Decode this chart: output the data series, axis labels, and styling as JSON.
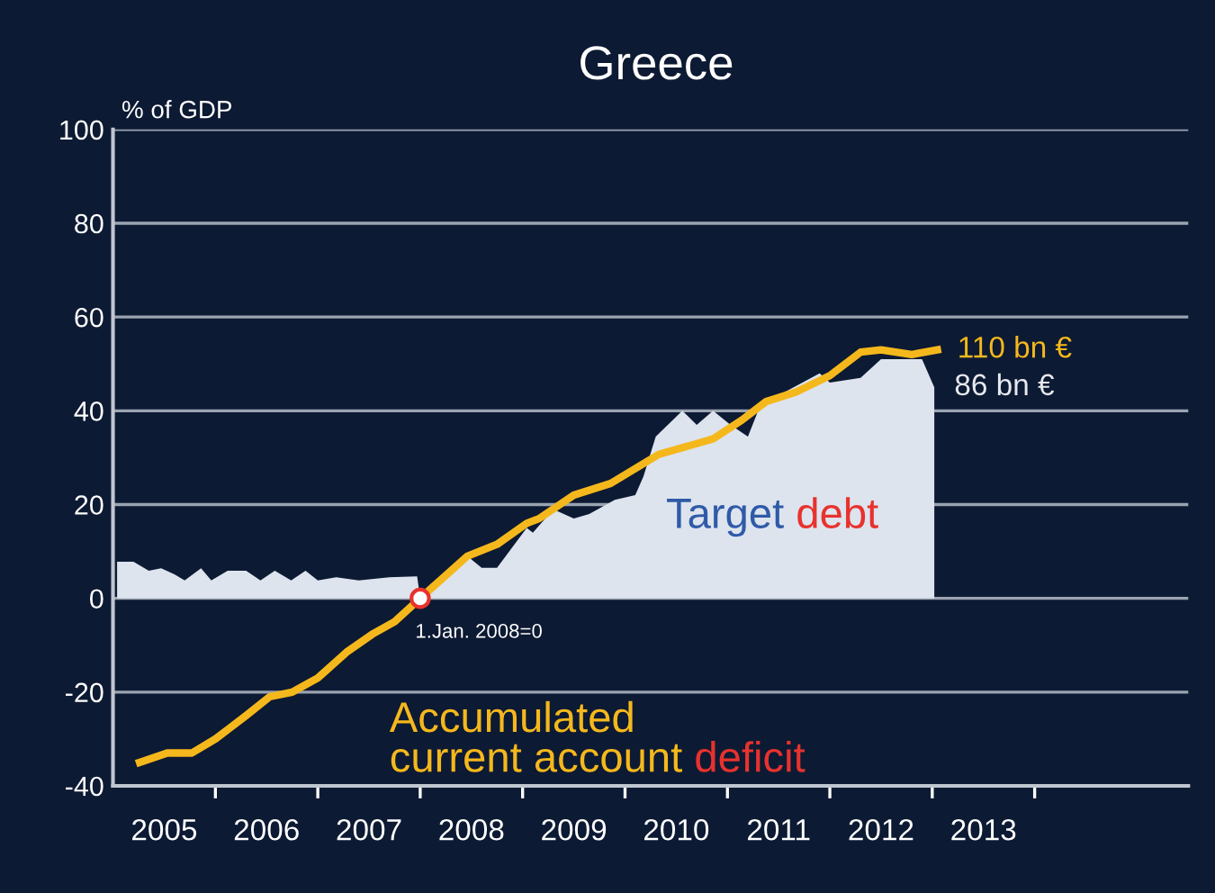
{
  "chart_data": {
    "type": "area",
    "title": "Greece",
    "ylabel": "% of GDP",
    "xlim": [
      2005,
      2015.5
    ],
    "ylim": [
      -40,
      100
    ],
    "xticks": [
      {
        "value": 2005.5,
        "label": "2005"
      },
      {
        "value": 2006.5,
        "label": "2006"
      },
      {
        "value": 2007.5,
        "label": "2007"
      },
      {
        "value": 2008.5,
        "label": "2008"
      },
      {
        "value": 2009.5,
        "label": "2009"
      },
      {
        "value": 2010.5,
        "label": "2010"
      },
      {
        "value": 2011.5,
        "label": "2011"
      },
      {
        "value": 2012.5,
        "label": "2012"
      },
      {
        "value": 2013.5,
        "label": "2013"
      },
      {
        "value": 2006,
        "label": null
      },
      {
        "value": 2007,
        "label": null
      },
      {
        "value": 2008,
        "label": null
      },
      {
        "value": 2009,
        "label": null
      },
      {
        "value": 2010,
        "label": null
      },
      {
        "value": 2011,
        "label": null
      },
      {
        "value": 2012,
        "label": null
      },
      {
        "value": 2013,
        "label": null
      },
      {
        "value": 2014,
        "label": null
      }
    ],
    "yticks": [
      -40,
      -20,
      0,
      20,
      40,
      60,
      80,
      100
    ],
    "grid": "y",
    "series": [
      {
        "name": "Target debt",
        "color": "#dde4ee",
        "x": [
          2005.04,
          2005.2,
          2005.35,
          2005.47,
          2005.6,
          2005.7,
          2005.86,
          2005.96,
          2006.12,
          2006.3,
          2006.44,
          2006.58,
          2006.74,
          2006.88,
          2007.0,
          2007.18,
          2007.4,
          2007.7,
          2007.97,
          2008.0,
          2008.1,
          2008.46,
          2008.6,
          2008.75,
          2009.04,
          2009.1,
          2009.3,
          2009.5,
          2009.65,
          2009.9,
          2010.1,
          2010.18,
          2010.3,
          2010.56,
          2010.7,
          2010.86,
          2011.03,
          2011.2,
          2011.3,
          2011.56,
          2011.9,
          2012.0,
          2012.3,
          2012.5,
          2012.9,
          2013.02
        ],
        "values": [
          7.8,
          7.8,
          5.9,
          6.4,
          5.1,
          3.8,
          6.4,
          3.8,
          5.9,
          5.9,
          3.8,
          5.9,
          3.8,
          5.9,
          3.8,
          4.5,
          3.8,
          4.5,
          4.7,
          0,
          3,
          9,
          6.5,
          6.5,
          15,
          14,
          19,
          17,
          18,
          21,
          22,
          26,
          34.5,
          40,
          37,
          40,
          37,
          34.5,
          40,
          44,
          48,
          46,
          47,
          51,
          51,
          45
        ]
      },
      {
        "name": "Accumulated current account deficit",
        "type": "line",
        "color": "#f5b81c",
        "x": [
          2005.26,
          2005.53,
          2005.77,
          2006.0,
          2006.3,
          2006.53,
          2006.75,
          2007.0,
          2007.28,
          2007.53,
          2007.75,
          2008.0,
          2008.46,
          2008.75,
          2009.04,
          2009.16,
          2009.5,
          2009.86,
          2010.33,
          2010.86,
          2011.14,
          2011.38,
          2011.67,
          2012.0,
          2012.3,
          2012.5,
          2012.8,
          2013.05
        ],
        "values": [
          -35,
          -33,
          -33,
          -30,
          -25,
          -21,
          -20,
          -17,
          -11.5,
          -7.7,
          -5,
          0,
          9,
          11.5,
          16,
          17,
          22,
          24.5,
          30.7,
          34,
          38,
          42,
          44,
          47.5,
          52.5,
          53,
          52,
          53
        ]
      }
    ],
    "annotations": [
      {
        "text": "1.Jan. 2008=0",
        "x": 2008,
        "y": 0
      },
      {
        "text": "110 bn €",
        "x": 2013.05,
        "y": 53
      },
      {
        "text": "86 bn €",
        "x": 2013.02,
        "y": 45
      }
    ]
  }
}
